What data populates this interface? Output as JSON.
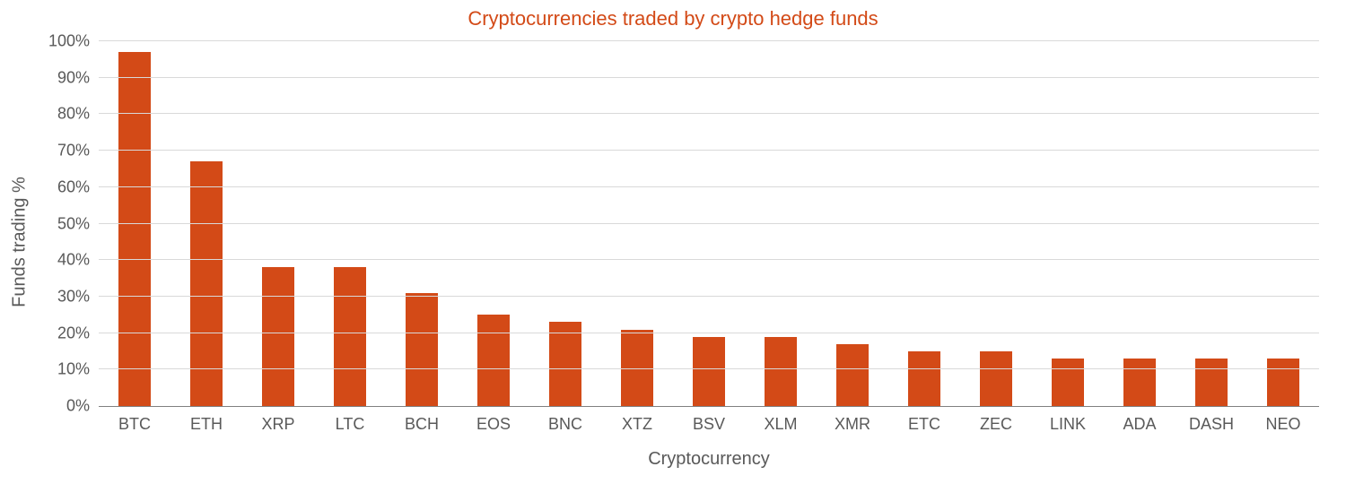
{
  "chart": {
    "type": "bar",
    "title": "Cryptocurrencies traded by crypto hedge funds",
    "title_color": "#d34a17",
    "title_fontsize": 22,
    "x_axis_title": "Cryptocurrency",
    "y_axis_title": "Funds trading %",
    "axis_label_color": "#595959",
    "axis_label_fontsize": 18,
    "axis_title_fontsize": 20,
    "background_color": "#ffffff",
    "grid_color": "#d9d9d9",
    "axis_line_color": "#808080",
    "bar_color": "#d34a17",
    "bar_width_ratio": 0.44,
    "ylim": [
      0,
      100
    ],
    "ytick_step": 10,
    "y_ticks": [
      {
        "value": 0,
        "label": "0%"
      },
      {
        "value": 10,
        "label": "10%"
      },
      {
        "value": 20,
        "label": "20%"
      },
      {
        "value": 30,
        "label": "30%"
      },
      {
        "value": 40,
        "label": "40%"
      },
      {
        "value": 50,
        "label": "50%"
      },
      {
        "value": 60,
        "label": "60%"
      },
      {
        "value": 70,
        "label": "70%"
      },
      {
        "value": 80,
        "label": "80%"
      },
      {
        "value": 90,
        "label": "90%"
      },
      {
        "value": 100,
        "label": "100%"
      }
    ],
    "categories": [
      "BTC",
      "ETH",
      "XRP",
      "LTC",
      "BCH",
      "EOS",
      "BNC",
      "XTZ",
      "BSV",
      "XLM",
      "XMR",
      "ETC",
      "ZEC",
      "LINK",
      "ADA",
      "DASH",
      "NEO"
    ],
    "values": [
      97,
      67,
      38,
      38,
      31,
      25,
      23,
      21,
      19,
      19,
      17,
      15,
      15,
      13,
      13,
      13,
      13
    ]
  }
}
